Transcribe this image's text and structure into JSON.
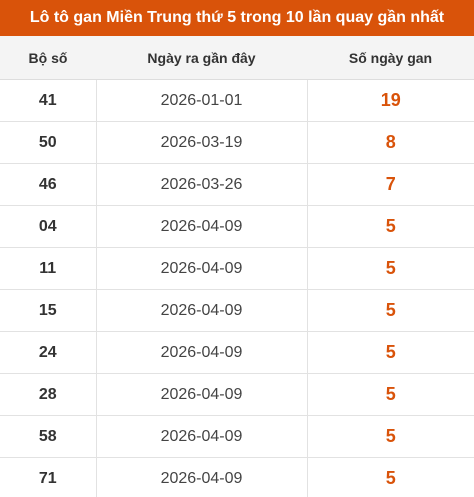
{
  "header": {
    "title": "Lô tô gan Miền Trung thứ 5 trong 10 lần quay gần nhất"
  },
  "table": {
    "columns": [
      "Bộ số",
      "Ngày ra gần đây",
      "Số ngày gan"
    ],
    "rows": [
      [
        "41",
        "2026-01-01",
        "19"
      ],
      [
        "50",
        "2026-03-19",
        "8"
      ],
      [
        "46",
        "2026-03-26",
        "7"
      ],
      [
        "04",
        "2026-04-09",
        "5"
      ],
      [
        "11",
        "2026-04-09",
        "5"
      ],
      [
        "15",
        "2026-04-09",
        "5"
      ],
      [
        "24",
        "2026-04-09",
        "5"
      ],
      [
        "28",
        "2026-04-09",
        "5"
      ],
      [
        "58",
        "2026-04-09",
        "5"
      ],
      [
        "71",
        "2026-04-09",
        "5"
      ]
    ]
  }
}
